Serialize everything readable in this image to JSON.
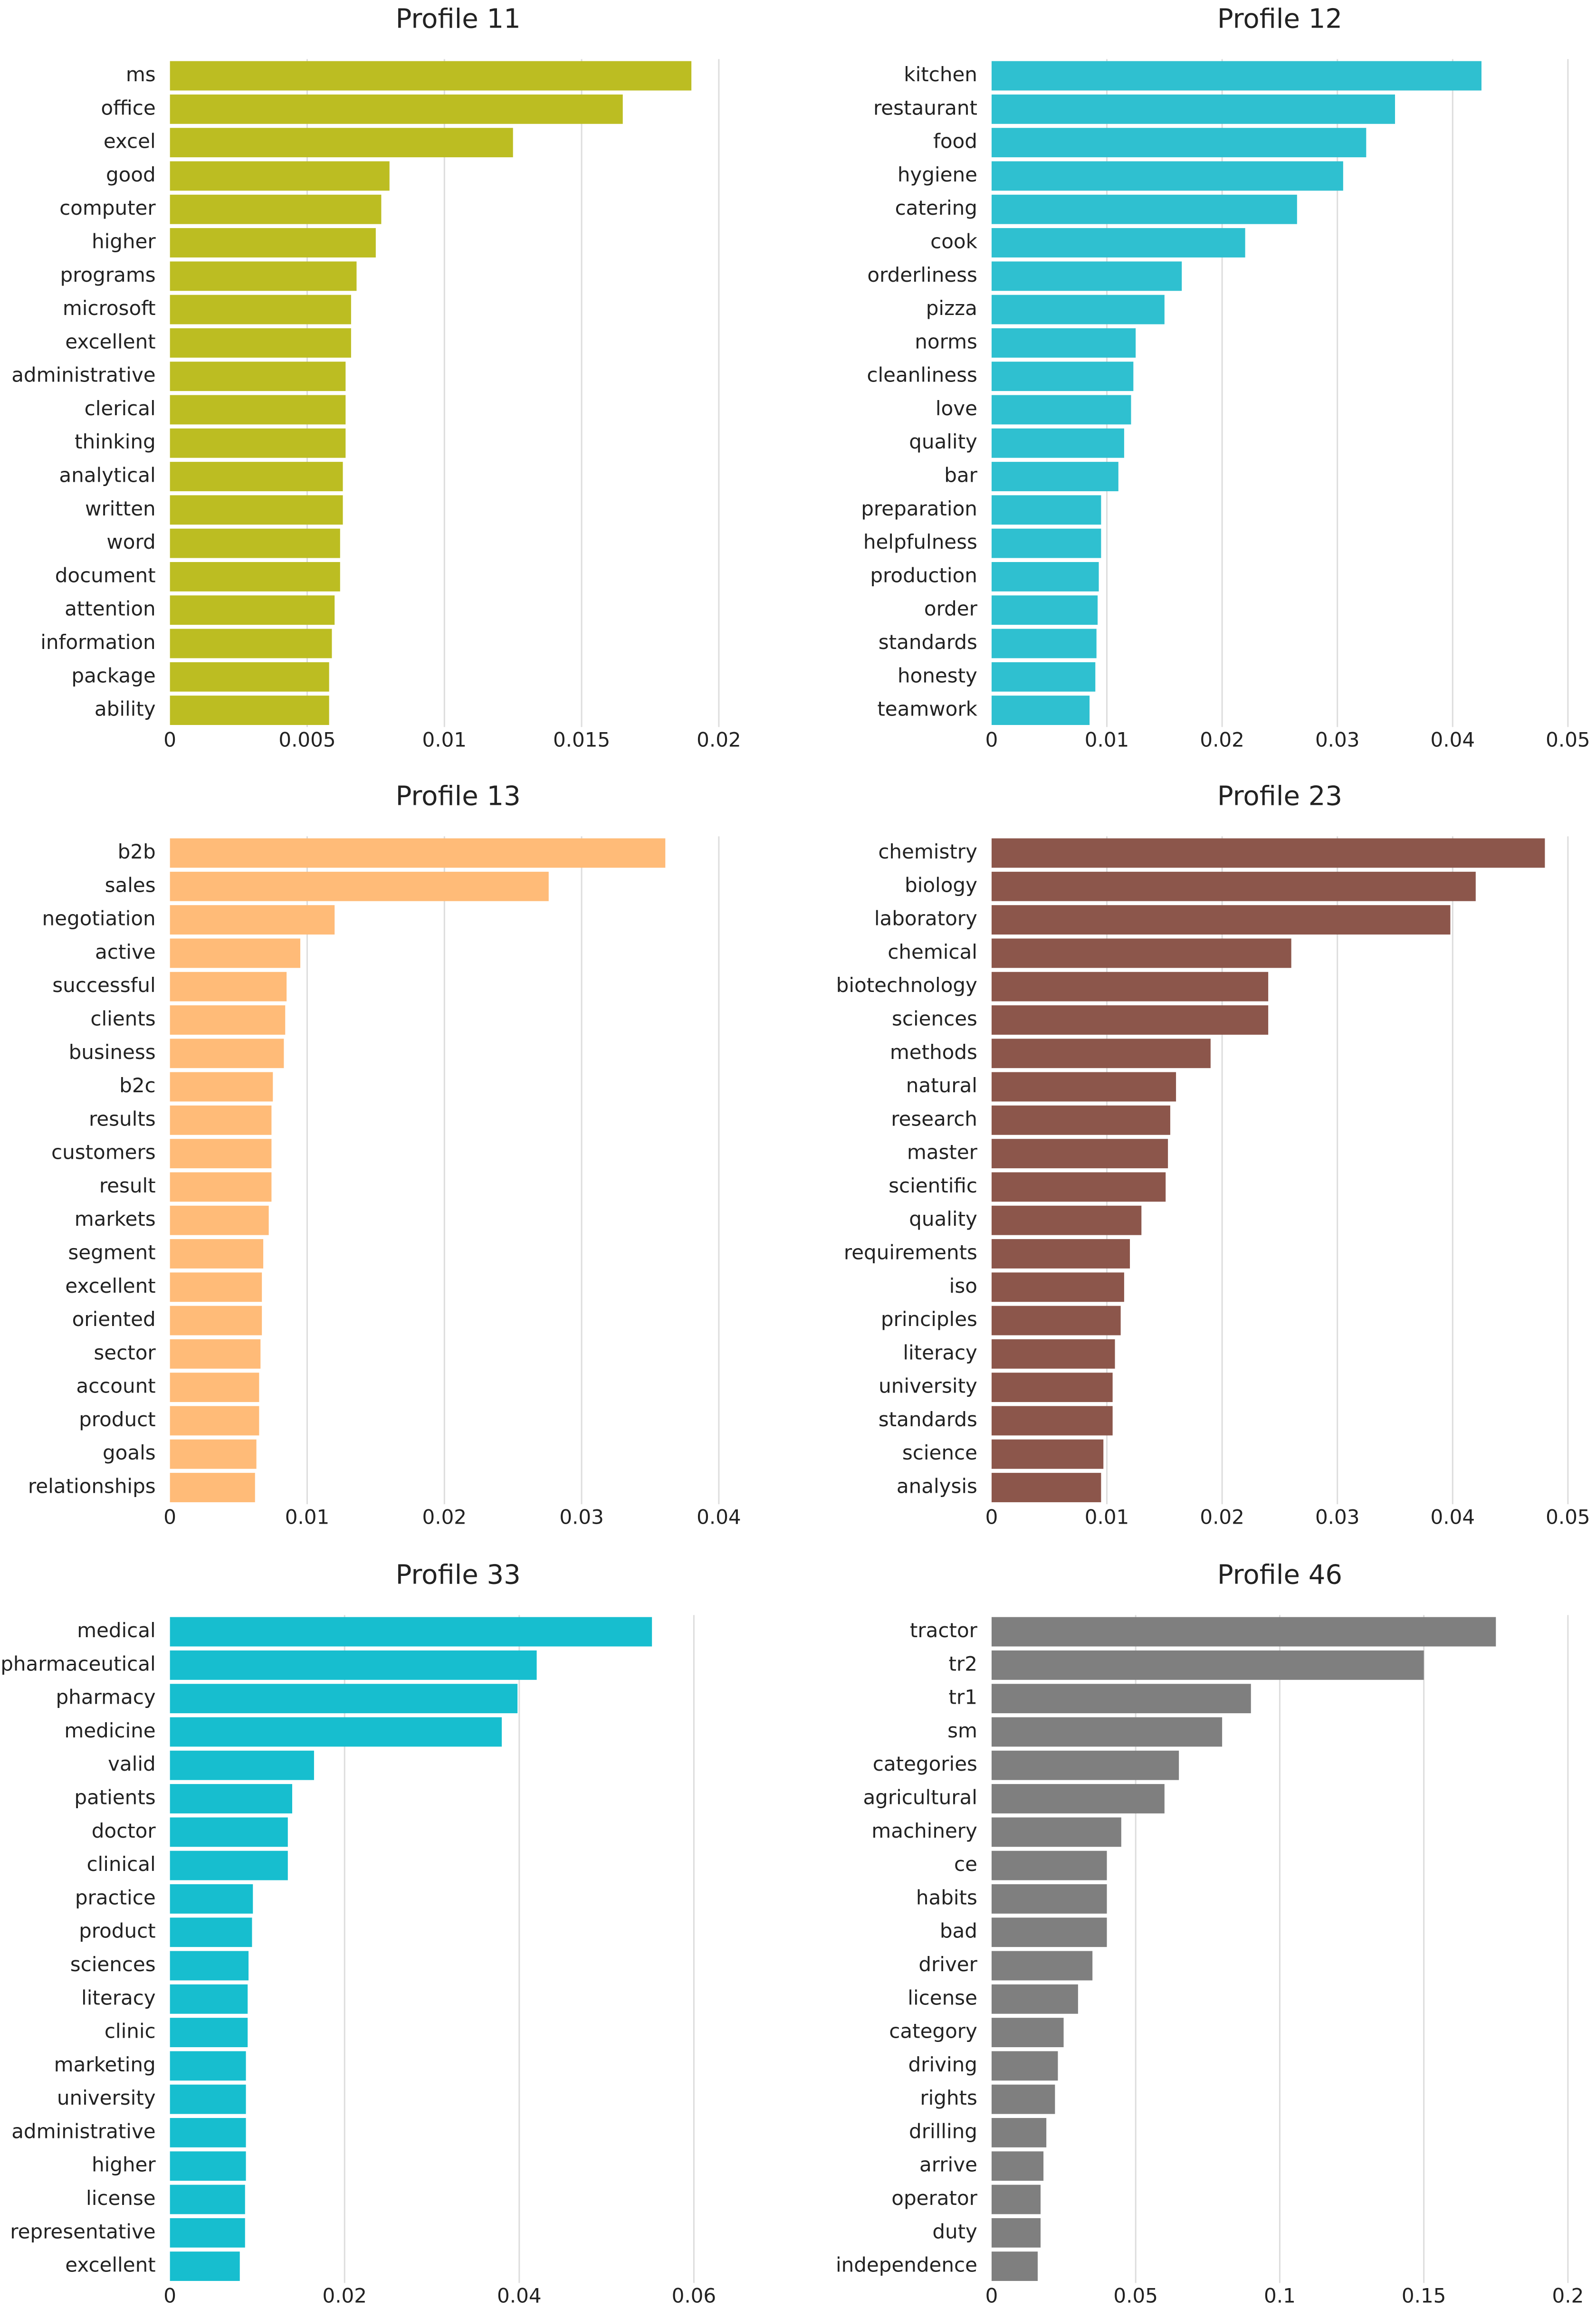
{
  "chart_data": [
    {
      "type": "bar",
      "orientation": "horizontal",
      "title": "Profile 11",
      "color": "#bcbd22",
      "categories": [
        "ms",
        "office",
        "excel",
        "good",
        "computer",
        "higher",
        "programs",
        "microsoft",
        "excellent",
        "administrative",
        "clerical",
        "thinking",
        "analytical",
        "written",
        "word",
        "document",
        "attention",
        "information",
        "package",
        "ability"
      ],
      "values": [
        0.019,
        0.0165,
        0.0125,
        0.008,
        0.0077,
        0.0075,
        0.0068,
        0.0066,
        0.0066,
        0.0064,
        0.0064,
        0.0064,
        0.0063,
        0.0063,
        0.0062,
        0.0062,
        0.006,
        0.0059,
        0.0058,
        0.0058
      ],
      "xlim": [
        0,
        0.021
      ],
      "ticks": [
        0,
        0.005,
        0.01,
        0.015,
        0.02
      ],
      "tick_labels": [
        "0",
        "0.005",
        "0.01",
        "0.015",
        "0.02"
      ],
      "grid": true
    },
    {
      "type": "bar",
      "orientation": "horizontal",
      "title": "Profile 12",
      "color": "#2fc0d0",
      "categories": [
        "kitchen",
        "restaurant",
        "food",
        "hygiene",
        "catering",
        "cook",
        "orderliness",
        "pizza",
        "norms",
        "cleanliness",
        "love",
        "quality",
        "bar",
        "preparation",
        "helpfulness",
        "production",
        "order",
        "standards",
        "honesty",
        "teamwork"
      ],
      "values": [
        0.0425,
        0.035,
        0.0325,
        0.0305,
        0.0265,
        0.022,
        0.0165,
        0.015,
        0.0125,
        0.0123,
        0.0121,
        0.0115,
        0.011,
        0.0095,
        0.0095,
        0.0093,
        0.0092,
        0.0091,
        0.009,
        0.0085
      ],
      "xlim": [
        0,
        0.05
      ],
      "ticks": [
        0,
        0.01,
        0.02,
        0.03,
        0.04,
        0.05
      ],
      "tick_labels": [
        "0",
        "0.01",
        "0.02",
        "0.03",
        "0.04",
        "0.05"
      ],
      "grid": true
    },
    {
      "type": "bar",
      "orientation": "horizontal",
      "title": "Profile 13",
      "color": "#ffbb78",
      "categories": [
        "b2b",
        "sales",
        "negotiation",
        "active",
        "successful",
        "clients",
        "business",
        "b2c",
        "results",
        "customers",
        "result",
        "markets",
        "segment",
        "excellent",
        "oriented",
        "sector",
        "account",
        "product",
        "goals",
        "relationships"
      ],
      "values": [
        0.0361,
        0.0276,
        0.012,
        0.0095,
        0.0085,
        0.0084,
        0.0083,
        0.0075,
        0.0074,
        0.0074,
        0.0074,
        0.0072,
        0.0068,
        0.0067,
        0.0067,
        0.0066,
        0.0065,
        0.0065,
        0.0063,
        0.0062
      ],
      "xlim": [
        0,
        0.042
      ],
      "ticks": [
        0,
        0.01,
        0.02,
        0.03,
        0.04
      ],
      "tick_labels": [
        "0",
        "0.01",
        "0.02",
        "0.03",
        "0.04"
      ],
      "grid": true
    },
    {
      "type": "bar",
      "orientation": "horizontal",
      "title": "Profile 23",
      "color": "#8c564b",
      "categories": [
        "chemistry",
        "biology",
        "laboratory",
        "chemical",
        "biotechnology",
        "sciences",
        "methods",
        "natural",
        "research",
        "master",
        "scientific",
        "quality",
        "requirements",
        "iso",
        "principles",
        "literacy",
        "university",
        "standards",
        "science",
        "analysis"
      ],
      "values": [
        0.048,
        0.042,
        0.0398,
        0.026,
        0.024,
        0.024,
        0.019,
        0.016,
        0.0155,
        0.0153,
        0.0151,
        0.013,
        0.012,
        0.0115,
        0.0112,
        0.0107,
        0.0105,
        0.0105,
        0.0097,
        0.0095
      ],
      "xlim": [
        0,
        0.05
      ],
      "ticks": [
        0,
        0.01,
        0.02,
        0.03,
        0.04,
        0.05
      ],
      "tick_labels": [
        "0",
        "0.01",
        "0.02",
        "0.03",
        "0.04",
        "0.05"
      ],
      "grid": true
    },
    {
      "type": "bar",
      "orientation": "horizontal",
      "title": "Profile 33",
      "color": "#17becf",
      "categories": [
        "medical",
        "pharmaceutical",
        "pharmacy",
        "medicine",
        "valid",
        "patients",
        "doctor",
        "clinical",
        "practice",
        "product",
        "sciences",
        "literacy",
        "clinic",
        "marketing",
        "university",
        "administrative",
        "higher",
        "license",
        "representative",
        "excellent"
      ],
      "values": [
        0.0552,
        0.042,
        0.0398,
        0.038,
        0.0165,
        0.014,
        0.0135,
        0.0135,
        0.0095,
        0.0094,
        0.009,
        0.0089,
        0.0089,
        0.0087,
        0.0087,
        0.0087,
        0.0087,
        0.0086,
        0.0086,
        0.008
      ],
      "xlim": [
        0,
        0.066
      ],
      "ticks": [
        0,
        0.02,
        0.04,
        0.06
      ],
      "tick_labels": [
        "0",
        "0.02",
        "0.04",
        "0.06"
      ],
      "grid": true
    },
    {
      "type": "bar",
      "orientation": "horizontal",
      "title": "Profile 46",
      "color": "#7f7f7f",
      "categories": [
        "tractor",
        "tr2",
        "tr1",
        "sm",
        "categories",
        "agricultural",
        "machinery",
        "ce",
        "habits",
        "bad",
        "driver",
        "license",
        "category",
        "driving",
        "rights",
        "drilling",
        "arrive",
        "operator",
        "duty",
        "independence"
      ],
      "values": [
        0.175,
        0.15,
        0.09,
        0.08,
        0.065,
        0.06,
        0.045,
        0.04,
        0.04,
        0.04,
        0.035,
        0.03,
        0.025,
        0.023,
        0.022,
        0.019,
        0.018,
        0.017,
        0.017,
        0.016
      ],
      "xlim": [
        0,
        0.2
      ],
      "ticks": [
        0,
        0.05,
        0.1,
        0.15,
        0.2
      ],
      "tick_labels": [
        "0",
        "0.05",
        "0.1",
        "0.15",
        "0.2"
      ],
      "grid": true
    }
  ]
}
